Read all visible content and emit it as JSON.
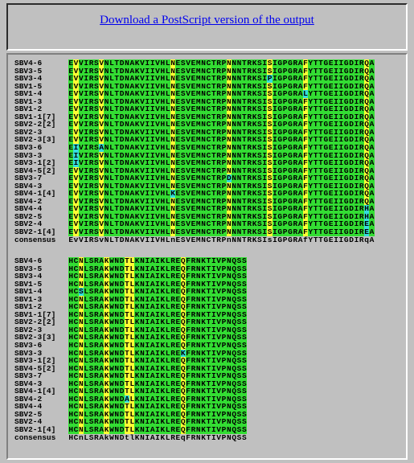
{
  "header": {
    "link": "Download a PostScript version of the output"
  },
  "blocks": [
    {
      "rows": [
        {
          "name": "SBV4-6",
          "sequence": "EVVIRSVNLTDNAKVIIVHLNESVEMNCTRPNNNTRKSISIGPGRAFYTTGEIIGDIRQA"
        },
        {
          "name": "SBV3-5",
          "sequence": "EVVIRSVNLTDNAKVIIVHLNESVEMNCTRPNNNTRKSISIGPGRAFYTTGEIIGDIRQA"
        },
        {
          "name": "SBV3-4",
          "sequence": "EVVIRSVNLTDNAKVIIVHLNESVEMNCTRPNNNTRKSIPIGPGRAFYTTGEIIGDIRQA"
        },
        {
          "name": "SBV1-5",
          "sequence": "EVVIRSVNLTDNAKVIIVHLNESVEMNCTRPNNNTRKSISIGPGRAFYTTGEIIGDIRQA"
        },
        {
          "name": "SBV1-4",
          "sequence": "EVVIRSVNLTDNAKVIIVHLNESVEMNCTRPNNNTRKSISIGPGRALYTTGEIIGDIRQA"
        },
        {
          "name": "SBV1-3",
          "sequence": "EVVIRSVNLTDNAKVIIVHLNESVEMNCTRPNNNTRKSISIGPGRAFYTTGEIIGDIRQA"
        },
        {
          "name": "SBV1-2",
          "sequence": "EVVIRSVNLTDNAKVIIVHLNESVEMNCTRPNNNTRKSISIGPGRAFYTTGEIIGDIRQA"
        },
        {
          "name": "SBV1-1[7]",
          "sequence": "EVVIRSVNLTDNAKVIIVHLNESVEMNCTRPNNNTRKSISIGPGRAFYTTGEIIGDIRQA"
        },
        {
          "name": "SBV2-2[2]",
          "sequence": "EVVIRSVNLTDNAKVIIVHLNESVEMNCTRPNNNTRKSISIGPGRAFYTTGEIIGDIRQA"
        },
        {
          "name": "SBV2-3",
          "sequence": "EVVIRSVNLTDNAKVIIVHLNESVEMNCTRPNNNTRKSISIGPGRAFYTTGEIIGDIRQA"
        },
        {
          "name": "SBV2-3[3]",
          "sequence": "EVVIRSVNLTDNAKVIIVHLNESVEMNCTRPNNNTRKSISIGPGRAFYTTGEIIGDIRQA"
        },
        {
          "name": "SBV3-6",
          "sequence": "EIVIRSANLTDNAKVIIVHLNESVEMNCTRPNNNTRKSISIGPGRAFYTTGEIIGDIRQA"
        },
        {
          "name": "SBV3-3",
          "sequence": "EIVIRSVNLTDNAKVIIVHLNESVEMNCTRPNNNTRKSISIGPGRAFYTTGEIIGDIRQA"
        },
        {
          "name": "SBV3-1[2]",
          "sequence": "EIVIRSVNLTDNAKVIIVHLNESVEMNCTRPNNNTRKSISIGPGRAFYTTGEIIGDIRQA"
        },
        {
          "name": "SBV4-5[2]",
          "sequence": "EVVIRSVNLTDNAKVIIVHLNESVEMNCTRPNNNTRKSISIGPGRAFYTTGEIIGDIRQA"
        },
        {
          "name": "SBV3-7",
          "sequence": "EVVIRSVNLTDNAKVIIVHLNESVEMNCTRPDNNTRKSISIGPGRAFYTTGEIIGDIRQA"
        },
        {
          "name": "SBV4-3",
          "sequence": "EVVIRSVNLTDNAKVIIVHLNESVEMNCTRPNNNTRKSISIGPGRAFYTTGEIIGDIRQA"
        },
        {
          "name": "SBV4-1[4]",
          "sequence": "EVVIRSVNLTDNAKVIIVHLKESVEMNCTRPNNNTRKSISIGPGRAFYTTGEIIGDIRQA"
        },
        {
          "name": "SBV4-2",
          "sequence": "EVVIRSVNLTDNAKVIIVHLNESVEMNCTRPNNNTRKSISIGPGRAFYTTGEIIGDIRQA"
        },
        {
          "name": "SBV4-4",
          "sequence": "EVVIRSVNLTDNAKVIIVHLNESVEMNCTRPNNNTRKSISIGPGRAFYTTGEIIGDIRHA"
        },
        {
          "name": "SBV2-5",
          "sequence": "EVVIRSVNLTDNAKVIIVHLNESVEMNCTRPNNNTRKSISIGPGRAFYTTGEIIGDIRHA"
        },
        {
          "name": "SBV2-4",
          "sequence": "EVVIRSVNLTDNAKVIIVHLNESVEMNCTRPNNNTRKSISIGPGRAFYTTGEIIGDIREA"
        },
        {
          "name": "SBV2-1[4]",
          "sequence": "EVVIRSVNLTDNAKVIIVHLNESVEMNCTRPNNNTRKSISIGPGRAFYTTGEIIGDIREA"
        }
      ],
      "consensus": {
        "name": "consensus",
        "sequence": "EvVIRSvNLTDNAKVIIVHLnESVEMNCTRPnNNTRKSIsIGPGRAfYTTGEIIGDIRqA"
      }
    },
    {
      "rows": [
        {
          "name": "SBV4-6",
          "sequence": "HCNLSRAKWNDTLKNIAIKLREQFRNKTIVPNQSS"
        },
        {
          "name": "SBV3-5",
          "sequence": "HCNLSRAKWNDTLKNIAIKLREQFRNKTIVPNQSS"
        },
        {
          "name": "SBV3-4",
          "sequence": "HCNLSRAKWNDTLKNIAIKLREQFRNKTIVPNQSS"
        },
        {
          "name": "SBV1-5",
          "sequence": "HCNLSRAKWNDTLKNIAIKLREQFRNKTIVPNQSS"
        },
        {
          "name": "SBV1-4",
          "sequence": "HCSLSRAKWNDTLKNIAIKLREQFRNKTIVPNQSS"
        },
        {
          "name": "SBV1-3",
          "sequence": "HCNLSRAKWNDTLKNIAIKLREQFRNKTIVPNQSS"
        },
        {
          "name": "SBV1-2",
          "sequence": "HCNLSRAKWNDTLKNIAIKLREQFRNKTIVPNQSS"
        },
        {
          "name": "SBV1-1[7]",
          "sequence": "HCNLSRAKWNDTLKNIAIKLREQFRNKTIVPNQSS"
        },
        {
          "name": "SBV2-2[2]",
          "sequence": "HCNLSRAKWNDTLKNIAIKLREQFRNKTIVPNQSS"
        },
        {
          "name": "SBV2-3",
          "sequence": "HCNLSRAKWNDTLKNIAIKLREQFRNKTIVPNQSS"
        },
        {
          "name": "SBV2-3[3]",
          "sequence": "HCNLSRAKWNDTLKNIAIKLREQFRNKTIVPNQSS"
        },
        {
          "name": "SBV3-6",
          "sequence": "HCNLSRAKWNDTLKNIAIKLREQFRNKTIVPNQSS"
        },
        {
          "name": "SBV3-3",
          "sequence": "HCNLSRAKWNDTLKNIAIKLREKFRNKTIVPNQSS"
        },
        {
          "name": "SBV3-1[2]",
          "sequence": "HCNLSRAKWNDTLKNIAIKLREQFRNKTIVPNQSS"
        },
        {
          "name": "SBV4-5[2]",
          "sequence": "HCNLSRAKWNDTLKNIAIKLREQFRNKTIVPNQSS"
        },
        {
          "name": "SBV3-7",
          "sequence": "HCNLSRAKWNDTLKNIAIKLREQFRNKTIVPNQSS"
        },
        {
          "name": "SBV4-3",
          "sequence": "HCNLSRAKWNDTLKNIAIKLREQFRNKTIVPNQSS"
        },
        {
          "name": "SBV4-1[4]",
          "sequence": "HCNLSRAKWNDTLKNIAIKLREQFRNKTIVPNQSS"
        },
        {
          "name": "SBV4-2",
          "sequence": "HCNLSRAKWNDALKNIAIKLREQFRNKTIVPNQSS"
        },
        {
          "name": "SBV4-4",
          "sequence": "HCNLSRAKWNDTLKNIAIKLREQFRNKTIVPNQSS"
        },
        {
          "name": "SBV2-5",
          "sequence": "HCNLSRAKWNDTLKNIAIKLREQFRNKTIVPNQSS"
        },
        {
          "name": "SBV2-4",
          "sequence": "HCNLSRAKWNDTLKNIAIKLREQFRNKTIVPNQSS"
        },
        {
          "name": "SBV2-1[4]",
          "sequence": "HCNLSRAKWNDTLKNIAIKLREQFRNKTIVPNQSS"
        }
      ],
      "consensus": {
        "name": "consensus",
        "sequence": "HCnLSRAkWNDtlKNIAIKLREqFRNKTIVPNQSS"
      }
    }
  ]
}
